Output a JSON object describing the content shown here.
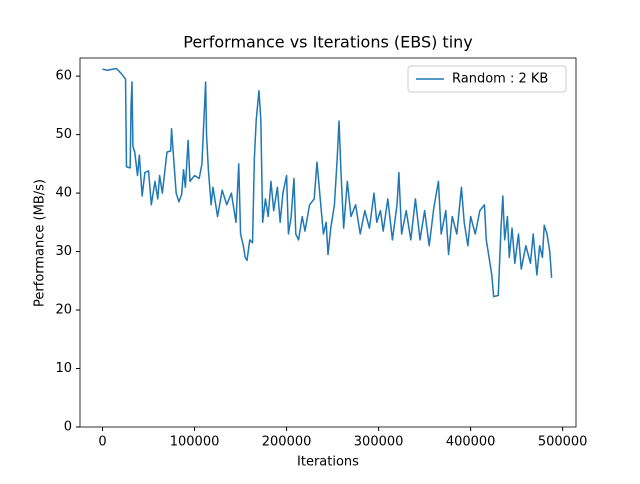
{
  "chart_data": {
    "type": "line",
    "title": "Performance vs Iterations (EBS) tiny",
    "xlabel": "Iterations",
    "ylabel": "Performance (MB/s)",
    "xlim": [
      -24500,
      514500
    ],
    "ylim": [
      0,
      63.1
    ],
    "xticks": [
      0,
      100000,
      200000,
      300000,
      400000,
      500000
    ],
    "yticks": [
      0,
      10,
      20,
      30,
      40,
      50,
      60
    ],
    "legend": "upper right",
    "x": [
      0,
      5000,
      15000,
      20000,
      25000,
      26000,
      30000,
      31000,
      32000,
      33000,
      35000,
      38000,
      40000,
      43000,
      46000,
      50000,
      53000,
      57000,
      60000,
      62000,
      65000,
      70000,
      74000,
      75000,
      77000,
      80000,
      83000,
      86000,
      88000,
      90000,
      93000,
      95000,
      100000,
      105000,
      108000,
      110000,
      112000,
      113000,
      115000,
      118000,
      120000,
      125000,
      130000,
      135000,
      140000,
      145000,
      148000,
      150000,
      153000,
      155000,
      157000,
      160000,
      163000,
      165000,
      167000,
      170000,
      172000,
      174000,
      177000,
      180000,
      183000,
      186000,
      190000,
      193000,
      196000,
      200000,
      202000,
      205000,
      208000,
      210000,
      213000,
      217000,
      220000,
      225000,
      230000,
      233000,
      236000,
      240000,
      243000,
      245000,
      248000,
      252000,
      255000,
      257000,
      259000,
      262000,
      266000,
      270000,
      275000,
      280000,
      285000,
      290000,
      295000,
      298000,
      302000,
      305000,
      310000,
      315000,
      320000,
      322000,
      325000,
      330000,
      335000,
      340000,
      345000,
      350000,
      355000,
      360000,
      365000,
      368000,
      373000,
      376000,
      380000,
      385000,
      390000,
      393000,
      397000,
      400000,
      405000,
      410000,
      415000,
      417000,
      420000,
      423000,
      425000,
      430000,
      433000,
      435000,
      437000,
      440000,
      442000,
      445000,
      448000,
      452000,
      455000,
      460000,
      465000,
      468000,
      472000,
      475000,
      478000,
      480000,
      483000,
      486000,
      488000
    ],
    "series": [
      {
        "name": "Random : 2 KB",
        "color": "#1f77b4",
        "values": [
          61.2,
          61,
          61.3,
          60.5,
          59.5,
          44.5,
          44.3,
          55,
          59,
          48,
          47,
          43,
          46.5,
          39.5,
          43.5,
          43.8,
          38,
          42,
          39,
          43,
          40,
          47,
          47.2,
          51,
          46.5,
          40,
          38.5,
          39.8,
          44,
          41,
          49,
          42,
          43,
          42.5,
          45,
          52,
          59,
          50,
          44,
          38,
          41,
          36,
          40.5,
          38,
          40,
          35,
          45,
          33,
          31,
          29,
          28.5,
          32,
          31.5,
          46,
          52.5,
          57.5,
          52.5,
          35,
          39,
          36,
          42,
          37,
          41,
          35,
          40,
          43,
          33,
          36,
          42.5,
          33,
          32,
          36,
          33.5,
          38,
          39,
          45.3,
          40,
          33,
          35,
          29.5,
          34,
          38,
          46,
          52.3,
          44,
          34,
          42,
          36,
          38,
          33,
          37,
          34,
          40,
          35,
          37,
          33.5,
          39,
          32,
          38,
          43.5,
          33,
          37,
          32,
          39,
          32,
          37,
          31,
          37.5,
          42,
          33,
          37,
          29.5,
          36,
          33,
          41,
          35,
          31,
          36,
          33,
          37,
          38,
          32,
          29,
          26,
          22.3,
          22.5,
          34,
          39.5,
          32,
          36,
          29,
          34,
          28,
          33,
          27,
          31,
          28,
          33,
          26,
          31,
          29,
          34.5,
          33,
          30,
          25.5
        ]
      }
    ]
  }
}
